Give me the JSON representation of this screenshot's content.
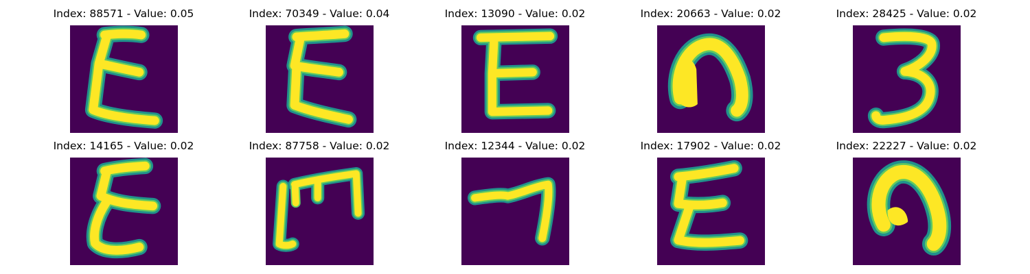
{
  "colors": {
    "background": "#440154",
    "stroke_edge": "#21918c",
    "stroke_mid": "#5ec962",
    "stroke_core": "#fde725"
  },
  "panels": [
    {
      "index": "88571",
      "value": "0.05",
      "title": "Index: 88571 - Value: 0.05",
      "glyph": "E-wavy"
    },
    {
      "index": "70349",
      "value": "0.04",
      "title": "Index: 70349 - Value: 0.04",
      "glyph": "E-wavy-2"
    },
    {
      "index": "13090",
      "value": "0.02",
      "title": "Index: 13090 - Value: 0.02",
      "glyph": "E-upright"
    },
    {
      "index": "20663",
      "value": "0.02",
      "title": "Index: 20663 - Value: 0.02",
      "glyph": "arch-thick"
    },
    {
      "index": "28425",
      "value": "0.02",
      "title": "Index: 28425 - Value: 0.02",
      "glyph": "three"
    },
    {
      "index": "14165",
      "value": "0.02",
      "title": "Index: 14165 - Value: 0.02",
      "glyph": "E-script"
    },
    {
      "index": "87758",
      "value": "0.02",
      "title": "Index: 87758 - Value: 0.02",
      "glyph": "E-rotated"
    },
    {
      "index": "12344",
      "value": "0.02",
      "title": "Index: 12344 - Value: 0.02",
      "glyph": "seven-like"
    },
    {
      "index": "17902",
      "value": "0.02",
      "title": "Index: 17902 - Value: 0.02",
      "glyph": "E-wavy-3"
    },
    {
      "index": "22227",
      "value": "0.02",
      "title": "Index: 22227 - Value: 0.02",
      "glyph": "arch-bold"
    }
  ]
}
